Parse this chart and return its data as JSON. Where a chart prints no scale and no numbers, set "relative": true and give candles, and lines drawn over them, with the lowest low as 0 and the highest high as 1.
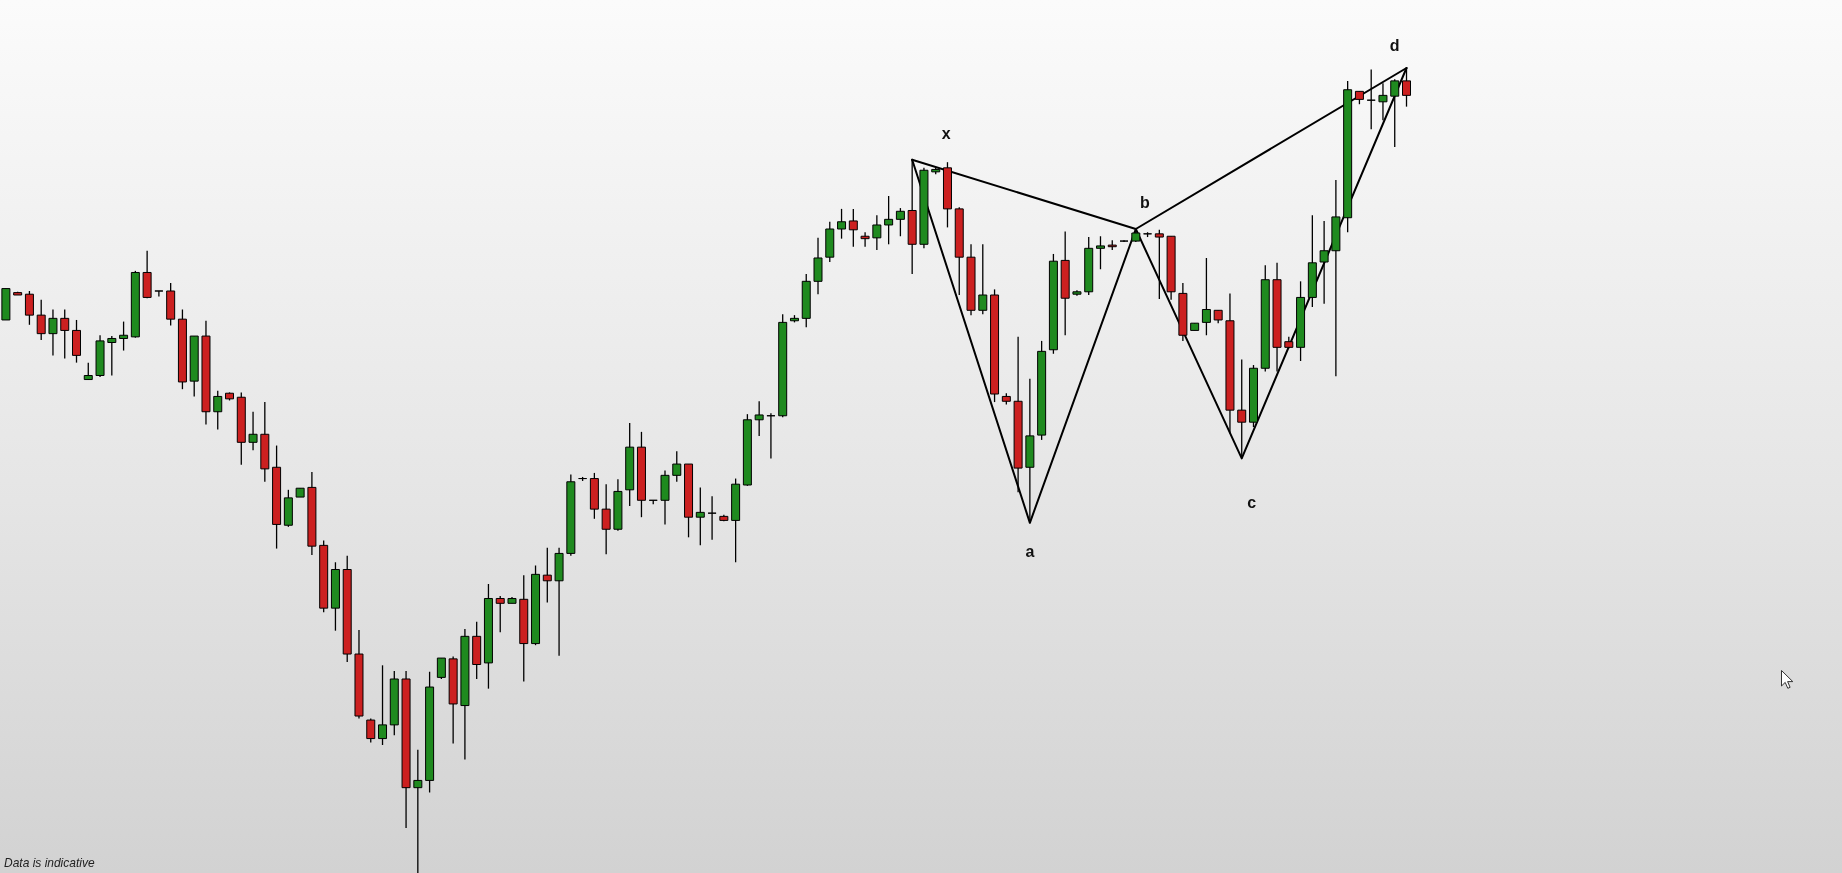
{
  "chart_data": {
    "type": "candlestick",
    "relative": true,
    "categories": [
      null,
      null,
      null,
      null,
      null,
      null,
      null,
      null,
      null,
      null,
      null,
      null,
      null,
      null,
      null,
      null,
      null,
      null,
      null,
      null,
      null,
      null,
      null,
      null,
      null,
      null,
      null,
      null,
      null,
      null,
      null,
      null,
      null,
      null,
      null,
      null,
      null,
      null,
      null,
      null,
      null,
      null,
      null,
      null,
      null,
      null,
      null,
      null,
      null,
      null,
      null,
      null,
      null,
      null,
      null,
      null,
      null,
      null,
      null,
      null,
      null,
      null,
      null,
      null,
      null,
      null,
      null,
      null,
      null,
      null,
      null,
      null,
      null,
      null,
      null,
      null,
      null,
      null,
      null,
      null,
      null,
      null,
      null,
      null,
      null,
      null,
      null,
      null,
      null,
      null,
      null,
      null,
      null,
      null,
      null,
      null,
      null,
      null,
      null,
      null,
      null,
      null,
      null,
      null,
      null,
      null,
      null,
      null,
      null,
      null,
      null,
      null,
      null,
      null,
      null,
      null,
      null,
      null,
      null,
      null
    ],
    "ohlc": [
      [
        0.687,
        0.726,
        0.687,
        0.726
      ],
      [
        0.721,
        0.722,
        0.718,
        0.718
      ],
      [
        0.719,
        0.723,
        0.681,
        0.693
      ],
      [
        0.693,
        0.712,
        0.662,
        0.67
      ],
      [
        0.67,
        0.7,
        0.643,
        0.689
      ],
      [
        0.689,
        0.7,
        0.639,
        0.674
      ],
      [
        0.674,
        0.687,
        0.634,
        0.643
      ],
      [
        0.613,
        0.634,
        0.613,
        0.618
      ],
      [
        0.618,
        0.668,
        0.616,
        0.661
      ],
      [
        0.659,
        0.667,
        0.618,
        0.664
      ],
      [
        0.664,
        0.685,
        0.649,
        0.668
      ],
      [
        0.666,
        0.748,
        0.665,
        0.746
      ],
      [
        0.746,
        0.773,
        0.714,
        0.715
      ],
      [
        0.723,
        0.723,
        0.716,
        0.723
      ],
      [
        0.723,
        0.733,
        0.68,
        0.688
      ],
      [
        0.688,
        0.7,
        0.601,
        0.61
      ],
      [
        0.611,
        0.667,
        0.592,
        0.667
      ],
      [
        0.667,
        0.686,
        0.557,
        0.573
      ],
      [
        0.573,
        0.599,
        0.551,
        0.592
      ],
      [
        0.596,
        0.597,
        0.587,
        0.589
      ],
      [
        0.591,
        0.597,
        0.507,
        0.535
      ],
      [
        0.535,
        0.573,
        0.525,
        0.545
      ],
      [
        0.545,
        0.585,
        0.486,
        0.502
      ],
      [
        0.504,
        0.531,
        0.403,
        0.433
      ],
      [
        0.432,
        0.476,
        0.43,
        0.466
      ],
      [
        0.467,
        0.478,
        0.467,
        0.478
      ],
      [
        0.479,
        0.498,
        0.395,
        0.406
      ],
      [
        0.407,
        0.413,
        0.324,
        0.329
      ],
      [
        0.329,
        0.386,
        0.301,
        0.377
      ],
      [
        0.377,
        0.394,
        0.262,
        0.272
      ],
      [
        0.272,
        0.302,
        0.192,
        0.195
      ],
      [
        0.19,
        0.192,
        0.162,
        0.167
      ],
      [
        0.167,
        0.258,
        0.159,
        0.184
      ],
      [
        0.184,
        0.251,
        0.171,
        0.241
      ],
      [
        0.241,
        0.251,
        0.056,
        0.106
      ],
      [
        0.106,
        0.153,
        0,
        0.115
      ],
      [
        0.115,
        0.25,
        0.1,
        0.231
      ],
      [
        0.243,
        0.267,
        0.241,
        0.267
      ],
      [
        0.266,
        0.269,
        0.161,
        0.21
      ],
      [
        0.208,
        0.303,
        0.141,
        0.294
      ],
      [
        0.294,
        0.312,
        0.241,
        0.259
      ],
      [
        0.261,
        0.359,
        0.229,
        0.341
      ],
      [
        0.341,
        0.344,
        0.299,
        0.335
      ],
      [
        0.335,
        0.343,
        0.335,
        0.341
      ],
      [
        0.34,
        0.37,
        0.238,
        0.285
      ],
      [
        0.285,
        0.382,
        0.283,
        0.371
      ],
      [
        0.37,
        0.404,
        0.336,
        0.363
      ],
      [
        0.363,
        0.404,
        0.27,
        0.397
      ],
      [
        0.397,
        0.495,
        0.394,
        0.486
      ],
      [
        0.49,
        0.492,
        0.487,
        0.49
      ],
      [
        0.49,
        0.497,
        0.44,
        0.452
      ],
      [
        0.452,
        0.483,
        0.396,
        0.427
      ],
      [
        0.427,
        0.489,
        0.425,
        0.474
      ],
      [
        0.476,
        0.559,
        0.456,
        0.529
      ],
      [
        0.529,
        0.548,
        0.442,
        0.463
      ],
      [
        0.463,
        0.463,
        0.458,
        0.463
      ],
      [
        0.463,
        0.5,
        0.433,
        0.494
      ],
      [
        0.494,
        0.524,
        0.486,
        0.508
      ],
      [
        0.508,
        0.508,
        0.417,
        0.442
      ],
      [
        0.442,
        0.479,
        0.407,
        0.448
      ],
      [
        0.447,
        0.468,
        0.414,
        0.447
      ],
      [
        0.443,
        0.445,
        0.437,
        0.438
      ],
      [
        0.438,
        0.49,
        0.386,
        0.483
      ],
      [
        0.482,
        0.57,
        0.481,
        0.563
      ],
      [
        0.563,
        0.586,
        0.543,
        0.569
      ],
      [
        0.568,
        0.571,
        0.515,
        0.568
      ],
      [
        0.568,
        0.694,
        0.566,
        0.684
      ],
      [
        0.686,
        0.693,
        0.684,
        0.689
      ],
      [
        0.689,
        0.744,
        0.678,
        0.735
      ],
      [
        0.735,
        0.789,
        0.719,
        0.764
      ],
      [
        0.765,
        0.809,
        0.759,
        0.8
      ],
      [
        0.8,
        0.825,
        0.788,
        0.809
      ],
      [
        0.81,
        0.825,
        0.778,
        0.799
      ],
      [
        0.791,
        0.796,
        0.778,
        0.788
      ],
      [
        0.789,
        0.817,
        0.774,
        0.805
      ],
      [
        0.805,
        0.841,
        0.781,
        0.812
      ],
      [
        0.812,
        0.826,
        0.791,
        0.822
      ],
      [
        0.823,
        0.886,
        0.744,
        0.781
      ],
      [
        0.781,
        0.876,
        0.776,
        0.873
      ],
      [
        0.871,
        0.876,
        0.868,
        0.874
      ],
      [
        0.876,
        0.883,
        0.802,
        0.825
      ],
      [
        0.825,
        0.827,
        0.718,
        0.765
      ],
      [
        0.765,
        0.781,
        0.693,
        0.699
      ],
      [
        0.699,
        0.781,
        0.694,
        0.718
      ],
      [
        0.718,
        0.725,
        0.585,
        0.595
      ],
      [
        0.592,
        0.596,
        0.582,
        0.586
      ],
      [
        0.586,
        0.666,
        0.473,
        0.503
      ],
      [
        0.504,
        0.614,
        0.435,
        0.543
      ],
      [
        0.544,
        0.661,
        0.538,
        0.648
      ],
      [
        0.65,
        0.769,
        0.645,
        0.76
      ],
      [
        0.761,
        0.797,
        0.668,
        0.714
      ],
      [
        0.719,
        0.724,
        0.717,
        0.722
      ],
      [
        0.722,
        0.79,
        0.718,
        0.776
      ],
      [
        0.776,
        0.791,
        0.75,
        0.779
      ],
      [
        0.78,
        0.786,
        0.774,
        0.778
      ],
      [
        0.785,
        0.786,
        0.784,
        0.785
      ],
      [
        0.785,
        0.8,
        0.784,
        0.795
      ],
      [
        0.794,
        0.796,
        0.79,
        0.794
      ],
      [
        0.794,
        0.799,
        0.713,
        0.79
      ],
      [
        0.791,
        0.791,
        0.712,
        0.722
      ],
      [
        0.72,
        0.733,
        0.661,
        0.668
      ],
      [
        0.674,
        0.683,
        0.674,
        0.683
      ],
      [
        0.684,
        0.764,
        0.668,
        0.7
      ],
      [
        0.699,
        0.699,
        0.683,
        0.687
      ],
      [
        0.686,
        0.72,
        0.546,
        0.575
      ],
      [
        0.575,
        0.638,
        0.515,
        0.56
      ],
      [
        0.56,
        0.631,
        0.554,
        0.627
      ],
      [
        0.627,
        0.755,
        0.623,
        0.737
      ],
      [
        0.737,
        0.758,
        0.623,
        0.653
      ],
      [
        0.66,
        0.666,
        0.652,
        0.653
      ],
      [
        0.653,
        0.735,
        0.636,
        0.715
      ],
      [
        0.715,
        0.817,
        0.703,
        0.758
      ],
      [
        0.759,
        0.81,
        0.707,
        0.773
      ],
      [
        0.773,
        0.861,
        0.617,
        0.815
      ],
      [
        0.814,
        0.984,
        0.796,
        0.973
      ],
      [
        0.971,
        0.971,
        0.955,
        0.961
      ],
      [
        0.96,
        0.998,
        0.924,
        0.96
      ],
      [
        0.958,
        0.981,
        0.935,
        0.966
      ],
      [
        0.965,
        0.986,
        0.902,
        0.984
      ],
      [
        0.984,
        1,
        0.952,
        0.966
      ]
    ],
    "colors": [
      "#1f8a1f",
      "#cc2020",
      "#cc2020",
      "#cc2020",
      "#1f8a1f",
      "#cc2020",
      "#cc2020",
      "#1f8a1f",
      "#1f8a1f",
      "#1f8a1f",
      "#1f8a1f",
      "#1f8a1f",
      "#cc2020",
      "#000000",
      "#cc2020",
      "#cc2020",
      "#1f8a1f",
      "#cc2020",
      "#1f8a1f",
      "#cc2020",
      "#cc2020",
      "#1f8a1f",
      "#cc2020",
      "#cc2020",
      "#1f8a1f",
      "#1f8a1f",
      "#cc2020",
      "#cc2020",
      "#1f8a1f",
      "#cc2020",
      "#cc2020",
      "#cc2020",
      "#1f8a1f",
      "#1f8a1f",
      "#cc2020",
      "#1f8a1f",
      "#1f8a1f",
      "#1f8a1f",
      "#cc2020",
      "#1f8a1f",
      "#cc2020",
      "#1f8a1f",
      "#cc2020",
      "#1f8a1f",
      "#cc2020",
      "#1f8a1f",
      "#cc2020",
      "#1f8a1f",
      "#1f8a1f",
      "#000000",
      "#cc2020",
      "#cc2020",
      "#1f8a1f",
      "#1f8a1f",
      "#cc2020",
      "#000000",
      "#1f8a1f",
      "#1f8a1f",
      "#cc2020",
      "#1f8a1f",
      "#000000",
      "#cc2020",
      "#1f8a1f",
      "#1f8a1f",
      "#1f8a1f",
      "#000000",
      "#1f8a1f",
      "#1f8a1f",
      "#1f8a1f",
      "#1f8a1f",
      "#1f8a1f",
      "#1f8a1f",
      "#cc2020",
      "#cc2020",
      "#1f8a1f",
      "#1f8a1f",
      "#1f8a1f",
      "#cc2020",
      "#1f8a1f",
      "#1f8a1f",
      "#cc2020",
      "#cc2020",
      "#cc2020",
      "#1f8a1f",
      "#cc2020",
      "#cc2020",
      "#cc2020",
      "#1f8a1f",
      "#1f8a1f",
      "#1f8a1f",
      "#cc2020",
      "#1f8a1f",
      "#1f8a1f",
      "#1f8a1f",
      "#cc2020",
      "#000000",
      "#1f8a1f",
      "#000000",
      "#cc2020",
      "#cc2020",
      "#cc2020",
      "#1f8a1f",
      "#1f8a1f",
      "#cc2020",
      "#cc2020",
      "#cc2020",
      "#1f8a1f",
      "#1f8a1f",
      "#cc2020",
      "#cc2020",
      "#1f8a1f",
      "#1f8a1f",
      "#1f8a1f",
      "#1f8a1f",
      "#1f8a1f",
      "#cc2020",
      "#000000",
      "#1f8a1f",
      "#1f8a1f",
      "#cc2020"
    ],
    "series": [
      {
        "type": "line",
        "color": "#000000",
        "values": [
          null,
          null,
          null,
          null,
          null,
          null,
          null,
          null,
          null,
          null,
          null,
          null,
          null,
          null,
          null,
          null,
          null,
          null,
          null,
          null,
          null,
          null,
          null,
          null,
          null,
          null,
          null,
          null,
          null,
          null,
          null,
          null,
          null,
          null,
          null,
          null,
          null,
          null,
          null,
          null,
          null,
          null,
          null,
          null,
          null,
          null,
          null,
          null,
          null,
          null,
          null,
          null,
          null,
          null,
          null,
          null,
          null,
          null,
          null,
          null,
          null,
          null,
          null,
          null,
          null,
          null,
          null,
          null,
          null,
          null,
          null,
          null,
          null,
          null,
          null,
          null,
          null,
          0.886,
          null,
          null,
          null,
          null,
          null,
          null,
          null,
          null,
          null,
          0.435,
          null,
          null,
          null,
          null,
          null,
          null,
          null,
          null,
          0.8,
          null,
          null,
          null,
          null,
          null,
          null,
          null,
          null,
          0.515,
          null,
          null,
          null,
          null,
          null,
          null,
          null,
          null,
          null,
          null,
          null,
          null,
          null,
          1
        ]
      },
      {
        "type": "line",
        "color": "#000000",
        "values": [
          null,
          null,
          null,
          null,
          null,
          null,
          null,
          null,
          null,
          null,
          null,
          null,
          null,
          null,
          null,
          null,
          null,
          null,
          null,
          null,
          null,
          null,
          null,
          null,
          null,
          null,
          null,
          null,
          null,
          null,
          null,
          null,
          null,
          null,
          null,
          null,
          null,
          null,
          null,
          null,
          null,
          null,
          null,
          null,
          null,
          null,
          null,
          null,
          null,
          null,
          null,
          null,
          null,
          null,
          null,
          null,
          null,
          null,
          null,
          null,
          null,
          null,
          null,
          null,
          null,
          null,
          null,
          null,
          null,
          null,
          null,
          null,
          null,
          null,
          null,
          null,
          null,
          0.886,
          null,
          null,
          null,
          null,
          null,
          null,
          null,
          null,
          null,
          null,
          null,
          null,
          null,
          null,
          null,
          null,
          null,
          null,
          0.8,
          null,
          null,
          null,
          null,
          null,
          null,
          null,
          null,
          null,
          null,
          null,
          null,
          null,
          null,
          null,
          null,
          null,
          null,
          null,
          null,
          null,
          null,
          1
        ]
      }
    ],
    "annotations": [
      "x",
      "a",
      "b",
      "c",
      "d",
      "Data is indicative"
    ]
  }
}
